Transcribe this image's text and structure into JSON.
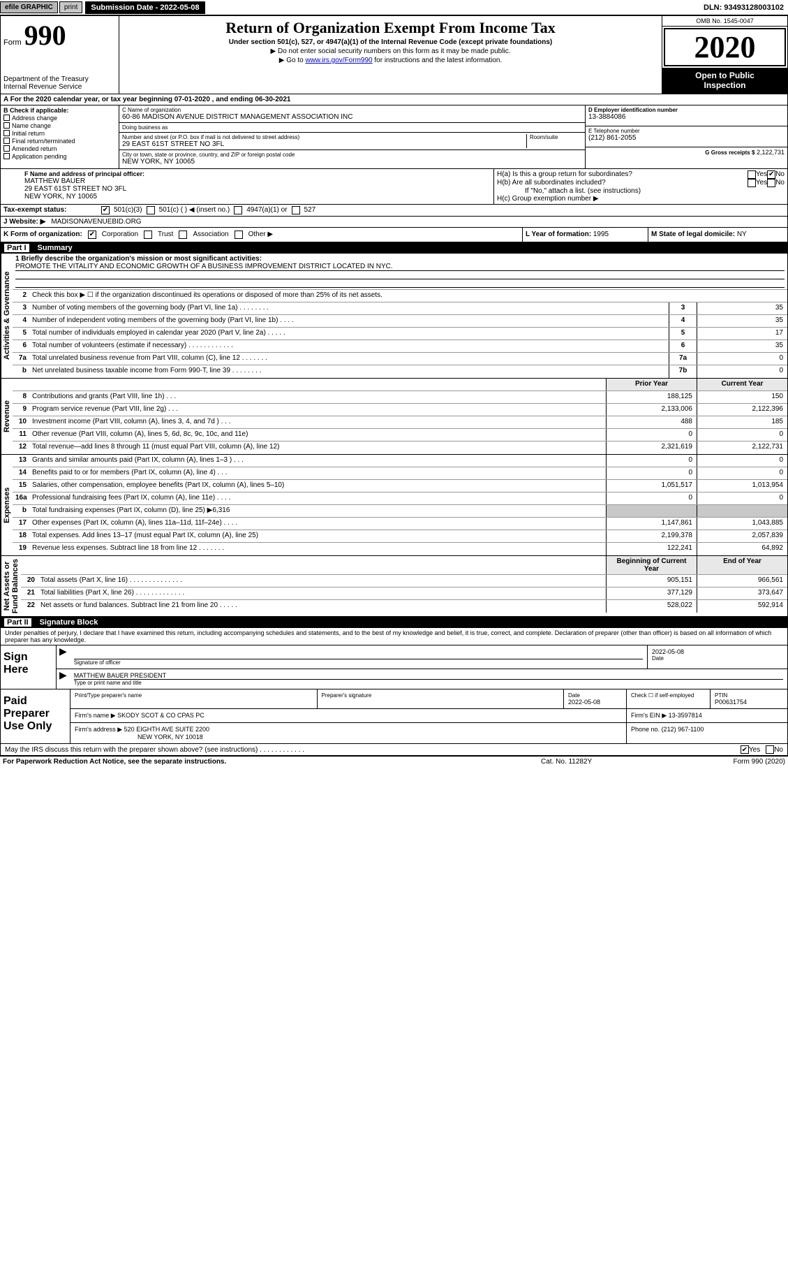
{
  "topbar": {
    "efile": "efile GRAPHIC",
    "print": "print",
    "subdate_label": "Submission Date - 2022-05-08",
    "dln": "DLN: 93493128003102"
  },
  "header": {
    "form_word": "Form",
    "form_num": "990",
    "dept": "Department of the Treasury\nInternal Revenue Service",
    "title": "Return of Organization Exempt From Income Tax",
    "subtitle": "Under section 501(c), 527, or 4947(a)(1) of the Internal Revenue Code (except private foundations)",
    "line2": "▶ Do not enter social security numbers on this form as it may be made public.",
    "line3_pre": "▶ Go to ",
    "line3_link": "www.irs.gov/Form990",
    "line3_post": " for instructions and the latest information.",
    "omb": "OMB No. 1545-0047",
    "year": "2020",
    "open": "Open to Public\nInspection"
  },
  "lineA": "A For the 2020 calendar year, or tax year beginning 07-01-2020    , and ending 06-30-2021",
  "colB": {
    "hdr": "B Check if applicable:",
    "items": [
      "Address change",
      "Name change",
      "Initial return",
      "Final return/terminated",
      "Amended return",
      "Application pending"
    ]
  },
  "colC": {
    "name_lbl": "C Name of organization",
    "name": "60-86 MADISON AVENUE DISTRICT MANAGEMENT ASSOCIATION INC",
    "dba_lbl": "Doing business as",
    "dba": "",
    "addr_lbl": "Number and street (or P.O. box if mail is not delivered to street address)",
    "room_lbl": "Room/suite",
    "addr": "29 EAST 61ST STREET NO 3FL",
    "city_lbl": "City or town, state or province, country, and ZIP or foreign postal code",
    "city": "NEW YORK, NY  10065"
  },
  "colD": {
    "d_lbl": "D Employer identification number",
    "ein": "13-3884086",
    "e_lbl": "E Telephone number",
    "phone": "(212) 861-2055",
    "g_lbl": "G Gross receipts $",
    "gross": "2,122,731"
  },
  "blockF": {
    "f_lbl": "F Name and address of principal officer:",
    "f_name": "MATTHEW BAUER",
    "f_addr1": "29 EAST 61ST STREET NO 3FL",
    "f_addr2": "NEW YORK, NY  10065",
    "ha": "H(a)  Is this a group return for subordinates?",
    "hb": "H(b)  Are all subordinates included?",
    "hb_note": "If \"No,\" attach a list. (see instructions)",
    "hc": "H(c)  Group exemption number ▶",
    "yes": "Yes",
    "no": "No"
  },
  "taxexempt": {
    "lbl": "Tax-exempt status:",
    "c3": "501(c)(3)",
    "c": "501(c) (   ) ◀ (insert no.)",
    "a1": "4947(a)(1) or",
    "s527": "527"
  },
  "website": {
    "lbl": "J  Website: ▶",
    "val": "MADISONAVENUEBID.ORG"
  },
  "klm": {
    "k_lbl": "K Form of organization:",
    "k_opts": [
      "Corporation",
      "Trust",
      "Association",
      "Other ▶"
    ],
    "l_lbl": "L Year of formation:",
    "l_val": "1995",
    "m_lbl": "M State of legal domicile:",
    "m_val": "NY"
  },
  "part1": {
    "bar": "Part I",
    "title": "Summary"
  },
  "summary": {
    "side1": "Activities & Governance",
    "side2": "Revenue",
    "side3": "Expenses",
    "side4": "Net Assets or\nFund Balances",
    "l1_lbl": "1  Briefly describe the organization's mission or most significant activities:",
    "l1_val": "PROMOTE THE VITALITY AND ECONOMIC GROWTH OF A BUSINESS IMPROVEMENT DISTRICT LOCATED IN NYC.",
    "l2": "Check this box ▶ ☐  if the organization discontinued its operations or disposed of more than 25% of its net assets.",
    "rows_top": [
      {
        "n": "3",
        "d": "Number of voting members of the governing body (Part VI, line 1a)   .    .    .    .    .    .    .    .",
        "b": "3",
        "v": "35"
      },
      {
        "n": "4",
        "d": "Number of independent voting members of the governing body (Part VI, line 1b)   .    .    .    .",
        "b": "4",
        "v": "35"
      },
      {
        "n": "5",
        "d": "Total number of individuals employed in calendar year 2020 (Part V, line 2a)    .    .    .    .    .",
        "b": "5",
        "v": "17"
      },
      {
        "n": "6",
        "d": "Total number of volunteers (estimate if necessary)    .    .    .    .    .    .    .    .    .    .    .    .",
        "b": "6",
        "v": "35"
      },
      {
        "n": "7a",
        "d": "Total unrelated business revenue from Part VIII, column (C), line 12   .    .    .    .    .    .    .",
        "b": "7a",
        "v": "0"
      },
      {
        "n": "b",
        "d": "Net unrelated business taxable income from Form 990-T, line 39    .    .    .    .    .    .    .    .",
        "b": "7b",
        "v": "0"
      }
    ],
    "col_prior": "Prior Year",
    "col_curr": "Current Year",
    "rows_rev": [
      {
        "n": "8",
        "d": "Contributions and grants (Part VIII, line 1h)    .    .    .",
        "p": "188,125",
        "c": "150"
      },
      {
        "n": "9",
        "d": "Program service revenue (Part VIII, line 2g)    .    .    .",
        "p": "2,133,006",
        "c": "2,122,396"
      },
      {
        "n": "10",
        "d": "Investment income (Part VIII, column (A), lines 3, 4, and 7d )    .    .    .",
        "p": "488",
        "c": "185"
      },
      {
        "n": "11",
        "d": "Other revenue (Part VIII, column (A), lines 5, 6d, 8c, 9c, 10c, and 11e)",
        "p": "0",
        "c": "0"
      },
      {
        "n": "12",
        "d": "Total revenue—add lines 8 through 11 (must equal Part VIII, column (A), line 12)",
        "p": "2,321,619",
        "c": "2,122,731"
      }
    ],
    "rows_exp": [
      {
        "n": "13",
        "d": "Grants and similar amounts paid (Part IX, column (A), lines 1–3 )    .    .    .",
        "p": "0",
        "c": "0"
      },
      {
        "n": "14",
        "d": "Benefits paid to or for members (Part IX, column (A), line 4)    .    .    .",
        "p": "0",
        "c": "0"
      },
      {
        "n": "15",
        "d": "Salaries, other compensation, employee benefits (Part IX, column (A), lines 5–10)",
        "p": "1,051,517",
        "c": "1,013,954"
      },
      {
        "n": "16a",
        "d": "Professional fundraising fees (Part IX, column (A), line 11e)    .    .    .    .",
        "p": "0",
        "c": "0"
      },
      {
        "n": "b",
        "d": "Total fundraising expenses (Part IX, column (D), line 25) ▶6,316",
        "p": "",
        "c": "",
        "grey": true
      },
      {
        "n": "17",
        "d": "Other expenses (Part IX, column (A), lines 11a–11d, 11f–24e)    .    .    .    .",
        "p": "1,147,861",
        "c": "1,043,885"
      },
      {
        "n": "18",
        "d": "Total expenses. Add lines 13–17 (must equal Part IX, column (A), line 25)",
        "p": "2,199,378",
        "c": "2,057,839"
      },
      {
        "n": "19",
        "d": "Revenue less expenses. Subtract line 18 from line 12    .    .    .    .    .    .    .",
        "p": "122,241",
        "c": "64,892"
      }
    ],
    "col_beg": "Beginning of Current Year",
    "col_end": "End of Year",
    "rows_net": [
      {
        "n": "20",
        "d": "Total assets (Part X, line 16)    .    .    .    .    .    .    .    .    .    .    .    .    .    .",
        "p": "905,151",
        "c": "966,561"
      },
      {
        "n": "21",
        "d": "Total liabilities (Part X, line 26)    .    .    .    .    .    .    .    .    .    .    .    .    .",
        "p": "377,129",
        "c": "373,647"
      },
      {
        "n": "22",
        "d": "Net assets or fund balances. Subtract line 21 from line 20    .    .    .    .    .",
        "p": "528,022",
        "c": "592,914"
      }
    ]
  },
  "part2": {
    "bar": "Part II",
    "title": "Signature Block"
  },
  "sig": {
    "penalty": "Under penalties of perjury, I declare that I have examined this return, including accompanying schedules and statements, and to the best of my knowledge and belief, it is true, correct, and complete. Declaration of preparer (other than officer) is based on all information of which preparer has any knowledge.",
    "sign_here": "Sign Here",
    "sig_officer": "Signature of officer",
    "date1": "2022-05-08",
    "date_lbl": "Date",
    "officer_name": "MATTHEW BAUER  PRESIDENT",
    "type_lbl": "Type or print name and title",
    "paid": "Paid Preparer Use Only",
    "prep_name_lbl": "Print/Type preparer's name",
    "prep_sig_lbl": "Preparer's signature",
    "date2": "2022-05-08",
    "check_lbl": "Check ☐ if self-employed",
    "ptin_lbl": "PTIN",
    "ptin": "P00631754",
    "firm_name_lbl": "Firm's name    ▶",
    "firm_name": "SKODY SCOT & CO CPAS PC",
    "firm_ein_lbl": "Firm's EIN ▶",
    "firm_ein": "13-3597814",
    "firm_addr_lbl": "Firm's address ▶",
    "firm_addr1": "520 EIGHTH AVE SUITE 2200",
    "firm_addr2": "NEW YORK, NY  10018",
    "phone_lbl": "Phone no.",
    "phone": "(212) 967-1100",
    "discuss": "May the IRS discuss this return with the preparer shown above? (see instructions)    .    .    .    .    .    .    .    .    .    .    .    .",
    "yes": "Yes",
    "no": "No"
  },
  "footer": {
    "left": "For Paperwork Reduction Act Notice, see the separate instructions.",
    "mid": "Cat. No. 11282Y",
    "right": "Form 990 (2020)"
  }
}
